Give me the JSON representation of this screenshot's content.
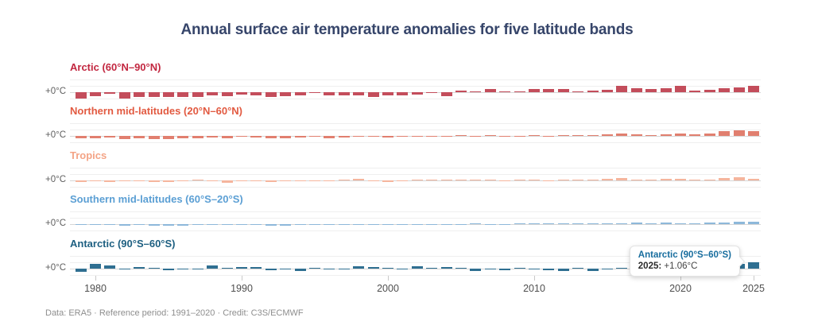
{
  "title": "Annual surface air temperature anomalies for five latitude bands",
  "footer": "Data: ERA5 · Reference period: 1991–2020 · Credit: C3S/ECMWF",
  "axis": {
    "zero_label": "+0°C",
    "year_ticks": [
      "1980",
      "1990",
      "2000",
      "2010",
      "2020",
      "2025"
    ]
  },
  "tooltip": {
    "title": "Antarctic (90°S–60°S)",
    "year_label": "2025:",
    "value": "+1.06°C"
  },
  "chart_data": {
    "type": "bar",
    "title": "Annual surface air temperature anomalies for five latitude bands",
    "unit": "°C",
    "reference_period": "1991–2020",
    "start_year": 1979,
    "end_year": 2025,
    "x_tick_years": [
      1980,
      1990,
      2000,
      2010,
      2020,
      2025
    ],
    "zero_line_label": "+0°C",
    "highlight": {
      "series": "Antarctic (90°S–60°S)",
      "year": 2025,
      "value": 1.06
    },
    "series": [
      {
        "name": "Arctic (60°N–90°N)",
        "label_color": "#c22740",
        "bar_color": "#c34d5b",
        "values": [
          -1.0,
          -0.62,
          -0.25,
          -1.0,
          -0.75,
          -0.72,
          -0.72,
          -0.7,
          -0.78,
          -0.55,
          -0.58,
          -0.42,
          -0.55,
          -0.78,
          -0.65,
          -0.48,
          -0.18,
          -0.52,
          -0.5,
          -0.55,
          -0.7,
          -0.48,
          -0.45,
          -0.35,
          -0.15,
          -0.6,
          0.3,
          0.15,
          0.45,
          0.1,
          0.08,
          0.45,
          0.5,
          0.45,
          0.08,
          0.3,
          0.35,
          1.0,
          0.6,
          0.5,
          0.65,
          1.0,
          0.25,
          0.4,
          0.6,
          0.72,
          0.95
        ]
      },
      {
        "name": "Northern mid-latitudes (20°N–60°N)",
        "label_color": "#e25a41",
        "bar_color": "#e17f6f",
        "values": [
          -0.42,
          -0.4,
          -0.3,
          -0.45,
          -0.35,
          -0.45,
          -0.5,
          -0.4,
          -0.38,
          -0.3,
          -0.32,
          -0.18,
          -0.22,
          -0.38,
          -0.42,
          -0.25,
          -0.15,
          -0.38,
          -0.22,
          -0.05,
          -0.18,
          -0.2,
          -0.1,
          -0.05,
          -0.08,
          -0.18,
          0.02,
          -0.03,
          0.05,
          -0.1,
          -0.12,
          0.05,
          -0.05,
          0.08,
          0.02,
          0.05,
          0.22,
          0.32,
          0.28,
          0.15,
          0.28,
          0.35,
          0.3,
          0.35,
          0.7,
          0.9,
          0.72
        ]
      },
      {
        "name": "Tropics",
        "label_color": "#f4a486",
        "bar_color": "#f5b59d",
        "values": [
          -0.22,
          -0.12,
          -0.22,
          -0.12,
          -0.08,
          -0.28,
          -0.28,
          -0.18,
          0.02,
          -0.18,
          -0.32,
          -0.12,
          -0.08,
          -0.22,
          -0.12,
          -0.08,
          -0.05,
          -0.18,
          0.05,
          0.22,
          -0.18,
          -0.22,
          -0.08,
          0.05,
          0.08,
          0.0,
          0.08,
          0.05,
          0.0,
          -0.12,
          0.05,
          0.18,
          -0.1,
          0.0,
          0.02,
          0.08,
          0.28,
          0.35,
          0.18,
          0.08,
          0.25,
          0.25,
          0.08,
          0.08,
          0.42,
          0.55,
          0.3
        ]
      },
      {
        "name": "Southern mid-latitudes (60°S–20°S)",
        "label_color": "#5b9fd4",
        "bar_color": "#8db8da",
        "values": [
          -0.18,
          -0.12,
          -0.18,
          -0.22,
          -0.18,
          -0.22,
          -0.28,
          -0.22,
          -0.12,
          -0.18,
          -0.18,
          -0.12,
          -0.18,
          -0.25,
          -0.22,
          -0.18,
          -0.1,
          -0.15,
          -0.1,
          -0.05,
          -0.1,
          -0.15,
          -0.1,
          -0.05,
          -0.05,
          -0.1,
          -0.05,
          0.0,
          -0.05,
          -0.05,
          0.05,
          0.05,
          0.0,
          0.05,
          0.1,
          0.12,
          0.12,
          0.15,
          0.2,
          0.15,
          0.2,
          0.15,
          0.15,
          0.2,
          0.3,
          0.38,
          0.38
        ]
      },
      {
        "name": "Antarctic (90°S–60°S)",
        "label_color": "#1d5f81",
        "bar_color": "#2f6f91",
        "values": [
          -0.5,
          0.75,
          0.5,
          -0.05,
          0.2,
          0.18,
          -0.22,
          -0.08,
          -0.1,
          0.45,
          0.05,
          0.28,
          0.22,
          -0.3,
          -0.12,
          -0.35,
          0.18,
          -0.15,
          -0.12,
          0.32,
          0.3,
          0.12,
          -0.18,
          0.38,
          0.15,
          0.2,
          0.1,
          -0.32,
          -0.12,
          -0.28,
          0.08,
          -0.12,
          -0.28,
          -0.35,
          0.08,
          -0.38,
          -0.15,
          0.12,
          0.35,
          0.12,
          0.18,
          -0.22,
          -0.38,
          0.18,
          0.5,
          0.8,
          1.06
        ]
      }
    ]
  }
}
